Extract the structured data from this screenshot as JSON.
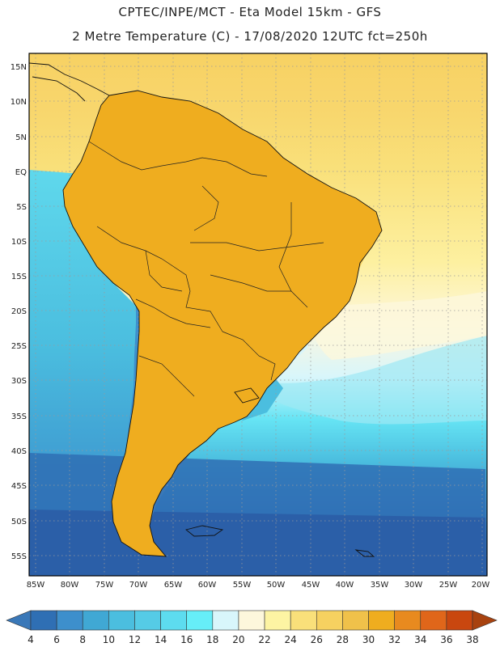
{
  "header": {
    "line1": "CPTEC/INPE/MCT  -   Eta Model 15km  - GFS",
    "line2": "2 Metre Temperature (C)  - 17/08/2020 12UTC fct=250h"
  },
  "map": {
    "lat_labels": [
      "15N",
      "10N",
      "5N",
      "EQ",
      "5S",
      "10S",
      "15S",
      "20S",
      "25S",
      "30S",
      "35S",
      "40S",
      "45S",
      "50S",
      "55S"
    ],
    "lon_labels": [
      "85W",
      "80W",
      "75W",
      "70W",
      "65W",
      "60W",
      "55W",
      "50W",
      "45W",
      "40W",
      "35W",
      "30W",
      "25W",
      "20W"
    ],
    "colors": {
      "frame": "#000000",
      "grid": "#9a9a9a",
      "coast": "#111111"
    }
  },
  "colorbar": {
    "ticks": [
      "4",
      "6",
      "8",
      "10",
      "12",
      "14",
      "16",
      "18",
      "20",
      "22",
      "24",
      "26",
      "28",
      "30",
      "32",
      "34",
      "36",
      "38"
    ],
    "colors": [
      "#3a78b8",
      "#2f6fb4",
      "#3d8fcc",
      "#40a8d4",
      "#4bbedf",
      "#55cbe6",
      "#5ddcef",
      "#66eef8",
      "#d8f6fb",
      "#fdf7dc",
      "#fdf4a3",
      "#f9e07a",
      "#f6d160",
      "#f0c14a",
      "#efad1f",
      "#e88a1f",
      "#e0661a",
      "#c9470f",
      "#a8420f"
    ]
  }
}
